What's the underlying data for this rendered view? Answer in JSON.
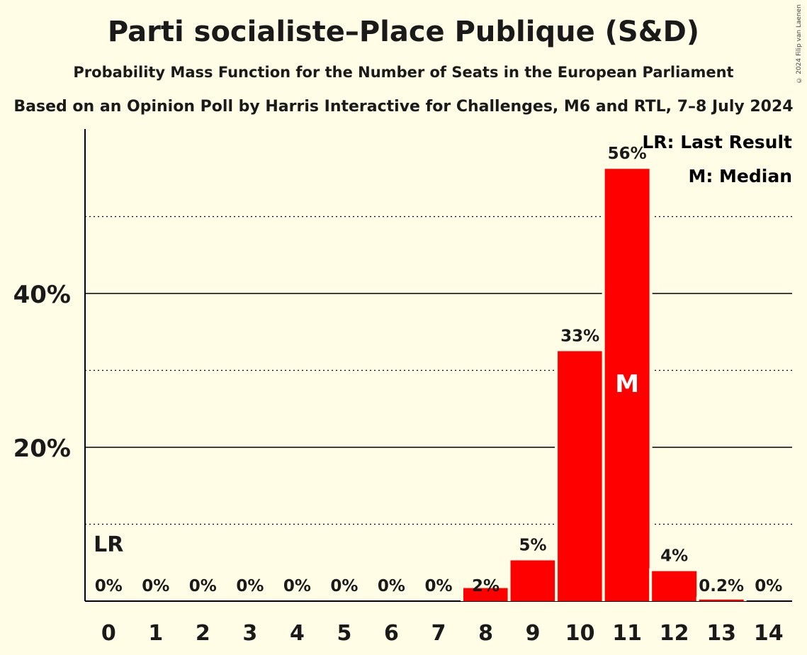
{
  "title": "Parti socialiste–Place Publique (S&D)",
  "subtitle": "Probability Mass Function for the Number of Seats in the European Parliament",
  "source": "Based on an Opinion Poll by Harris Interactive for Challenges, M6 and RTL, 7–8 July 2024",
  "copyright": "© 2024 Filip van Laenen",
  "legend": {
    "last_result": "LR: Last Result",
    "median": "M: Median"
  },
  "colors": {
    "bar": "#FF0000",
    "background": "#FFFDE6",
    "text": "#1a1a1a"
  },
  "chart_data": {
    "type": "bar",
    "categories": [
      "0",
      "1",
      "2",
      "3",
      "4",
      "5",
      "6",
      "7",
      "8",
      "9",
      "10",
      "11",
      "12",
      "13",
      "14"
    ],
    "values": [
      0,
      0,
      0,
      0,
      0,
      0,
      0,
      0,
      1.7,
      5.3,
      32.5,
      56.2,
      3.9,
      0.2,
      0
    ],
    "data_labels": [
      "0%",
      "0%",
      "0%",
      "0%",
      "0%",
      "0%",
      "0%",
      "0%",
      "2%",
      "5%",
      "33%",
      "56%",
      "4%",
      "0.2%",
      "0%"
    ],
    "y_ticks": [
      {
        "value": 20,
        "label": "20%"
      },
      {
        "value": 40,
        "label": "40%"
      }
    ],
    "minor_gridlines": [
      10,
      30,
      50
    ],
    "ylim": [
      0,
      60
    ],
    "last_result_index": 0,
    "last_result_label": "LR",
    "median_index": 11,
    "median_label": "M",
    "legend_position": "top-right",
    "grid": true
  }
}
